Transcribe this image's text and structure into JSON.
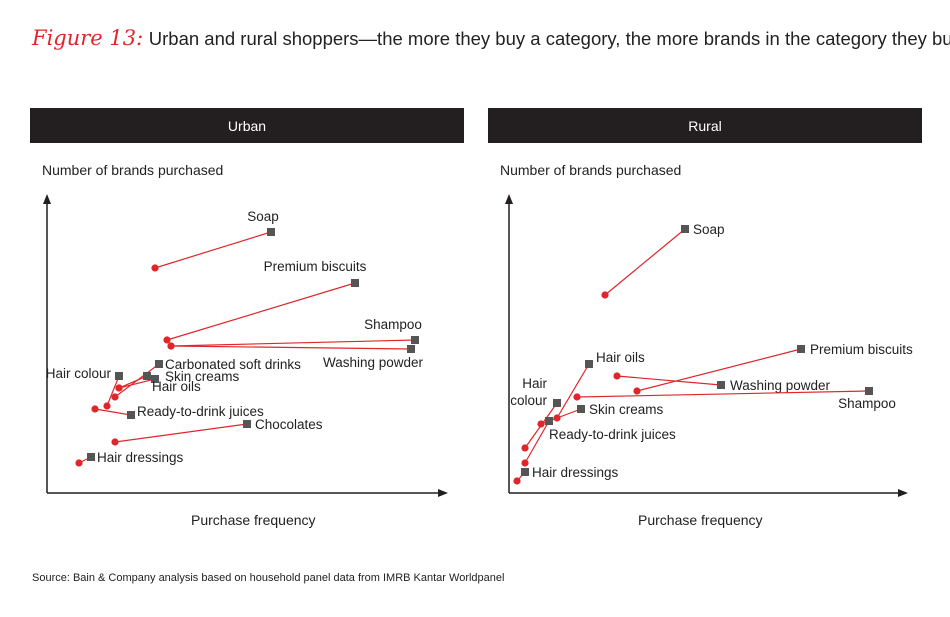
{
  "figure": {
    "label": "Figure 13:",
    "title": "Urban and rural shoppers—the more they buy a category, the more brands in the category they buy"
  },
  "source": "Source: Bain & Company analysis based on household panel data from IMRB Kantar Worldpanel",
  "colors": {
    "start": "#e0262b",
    "end": "#555555",
    "line": "#e0262b",
    "header": "#231f20"
  },
  "chart_data": [
    {
      "type": "scatter",
      "title": "Urban",
      "xlabel": "Purchase frequency",
      "ylabel": "Number of brands purchased",
      "xlim": [
        0,
        100
      ],
      "ylim": [
        0,
        100
      ],
      "grid": false,
      "series": [
        {
          "name": "Soap",
          "from": [
            27,
            75
          ],
          "to": [
            56,
            87
          ]
        },
        {
          "name": "Premium biscuits",
          "from": [
            30,
            51
          ],
          "to": [
            77,
            70
          ]
        },
        {
          "name": "Shampoo",
          "from": [
            31,
            49
          ],
          "to": [
            92,
            51
          ]
        },
        {
          "name": "Washing powder",
          "from": [
            31,
            49
          ],
          "to": [
            91,
            48
          ]
        },
        {
          "name": "Carbonated soft drinks",
          "from": [
            17,
            32
          ],
          "to": [
            28,
            43
          ]
        },
        {
          "name": "Skin creams",
          "from": [
            18,
            35
          ],
          "to": [
            27,
            38
          ]
        },
        {
          "name": "Hair oils",
          "from": [
            18,
            35
          ],
          "to": [
            25,
            39
          ]
        },
        {
          "name": "Hair colour",
          "from": [
            15,
            29
          ],
          "to": [
            18,
            39
          ]
        },
        {
          "name": "Ready-to-drink juices",
          "from": [
            12,
            28
          ],
          "to": [
            21,
            26
          ]
        },
        {
          "name": "Chocolates",
          "from": [
            17,
            17
          ],
          "to": [
            50,
            23
          ]
        },
        {
          "name": "Hair dressings",
          "from": [
            8,
            10
          ],
          "to": [
            11,
            12
          ]
        }
      ]
    },
    {
      "type": "scatter",
      "title": "Rural",
      "xlabel": "Purchase frequency",
      "ylabel": "Number of brands purchased",
      "xlim": [
        0,
        100
      ],
      "ylim": [
        0,
        100
      ],
      "grid": false,
      "series": [
        {
          "name": "Soap",
          "from": [
            24,
            66
          ],
          "to": [
            44,
            88
          ]
        },
        {
          "name": "Premium biscuits",
          "from": [
            32,
            34
          ],
          "to": [
            73,
            48
          ]
        },
        {
          "name": "Washing powder",
          "from": [
            27,
            39
          ],
          "to": [
            53,
            36
          ]
        },
        {
          "name": "Shampoo",
          "from": [
            17,
            32
          ],
          "to": [
            90,
            34
          ]
        },
        {
          "name": "Hair oils",
          "from": [
            12,
            25
          ],
          "to": [
            20,
            43
          ]
        },
        {
          "name": "Hair colour",
          "from": [
            4,
            15
          ],
          "to": [
            12,
            30
          ]
        },
        {
          "name": "Skin creams",
          "from": [
            8,
            23
          ],
          "to": [
            18,
            28
          ]
        },
        {
          "name": "Ready-to-drink juices",
          "from": [
            4,
            10
          ],
          "to": [
            10,
            24
          ]
        },
        {
          "name": "Hair dressings",
          "from": [
            2,
            4
          ],
          "to": [
            4,
            7
          ]
        }
      ]
    }
  ]
}
